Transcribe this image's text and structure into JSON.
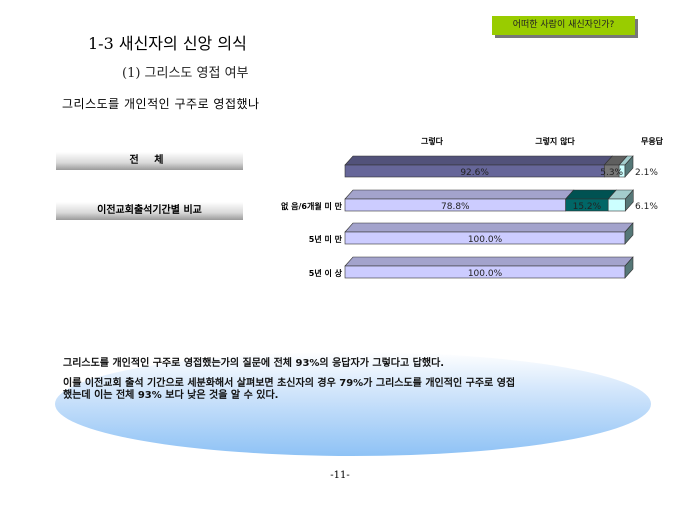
{
  "header": {
    "title": "1-3 새신자의 신앙 의식",
    "subtitle": "(1) 그리스도 영접 여부",
    "question": "그리스도를   개인적인   구주로   영접했나",
    "nav_button": "어떠한 사람이 새신자인가?"
  },
  "groups": {
    "total": "전 체",
    "compare": "이전교회출석기간별 비교"
  },
  "chart_data": {
    "type": "bar",
    "orientation": "horizontal",
    "stacked": true,
    "three_d": true,
    "legend_position": "top",
    "categories": [
      "",
      "없 음/6개월 미 만",
      "5년 미 만",
      "5년 이 상"
    ],
    "series": [
      {
        "name": "그렇다",
        "values": [
          92.6,
          78.8,
          100.0,
          100.0
        ],
        "labels": [
          "92.6%",
          "78.8%",
          "100.0%",
          "100.0%"
        ],
        "colors": [
          "#666699",
          "#ccccff",
          "#ccccff",
          "#ccccff"
        ]
      },
      {
        "name": "그렇지 않다",
        "values": [
          5.3,
          15.2,
          0,
          0
        ],
        "labels": [
          "5.3%",
          "15.2%",
          "",
          ""
        ],
        "colors": [
          "#777777",
          "#006666",
          "#006666",
          "#006666"
        ]
      },
      {
        "name": "무응답",
        "values": [
          2.1,
          6.1,
          0,
          0
        ],
        "labels": [
          "2.1%",
          "6.1%",
          "",
          ""
        ],
        "colors": [
          "#ccffff",
          "#ccffff",
          "#ccffff",
          "#ccffff"
        ]
      }
    ],
    "xlim": [
      0,
      100
    ],
    "grid": false
  },
  "summary": {
    "p1": "그리스도를 개인적인 구주로 영접했는가의 질문에 전체 93%의 응답자가 그렇다고 답했다.",
    "p2_line1": "이를 이전교회 출석 기간으로 세분화해서 살펴보면 초신자의 경우 79%가 그리스도를 개인적인 구주로 영접",
    "p2_line2": "했는데 이는 전체 93% 보다 낮은 것을 알 수 있다."
  },
  "footer": {
    "page_number": "-11-"
  }
}
